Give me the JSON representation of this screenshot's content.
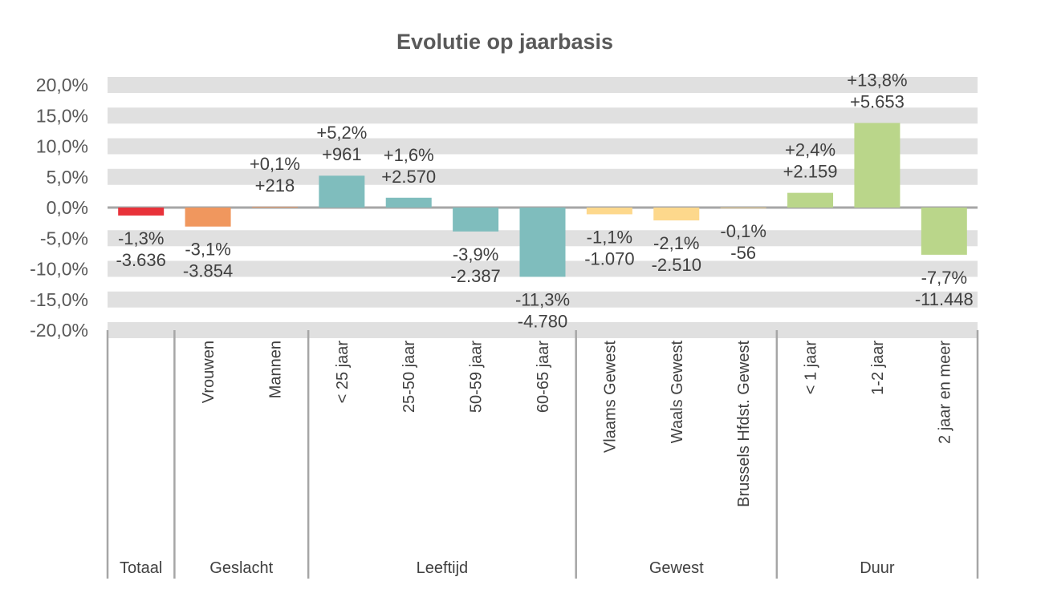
{
  "chart_data": {
    "type": "bar",
    "title": "Evolutie op jaarbasis",
    "xlabel": "",
    "ylabel": "",
    "ylim": [
      -20,
      20
    ],
    "yticks": [
      20,
      15,
      10,
      5,
      0,
      -5,
      -10,
      -15,
      -20
    ],
    "ytick_labels": [
      "20,0%",
      "15,0%",
      "10,0%",
      "5,0%",
      "0,0%",
      "-5,0%",
      "-10,0%",
      "-15,0%",
      "-20,0%"
    ],
    "grid": "alternating bands",
    "legend": "none",
    "categories": [
      "",
      "Vrouwen",
      "Mannen",
      "< 25 jaar",
      "25-50 jaar",
      "50-59 jaar",
      "60-65 jaar",
      "Vlaams Gewest",
      "Waals Gewest",
      "Brussels Hfdst. Gewest",
      "< 1 jaar",
      "1-2 jaar",
      "2 jaar en meer"
    ],
    "values": [
      -1.3,
      -3.1,
      0.1,
      5.2,
      1.6,
      -3.9,
      -11.3,
      -1.1,
      -2.1,
      -0.1,
      2.4,
      13.8,
      -7.7
    ],
    "pct_labels": [
      "-1,3%",
      "-3,1%",
      "+0,1%",
      "+5,2%",
      "+1,6%",
      "-3,9%",
      "-11,3%",
      "-1,1%",
      "-2,1%",
      "-0,1%",
      "+2,4%",
      "+13,8%",
      "-7,7%"
    ],
    "abs_labels": [
      "-3.636",
      "-3.854",
      "+218",
      "+961",
      "+2.570",
      "-2.387",
      "-4.780",
      "-1.070",
      "-2.510",
      "-56",
      "+2.159",
      "+5.653",
      "-11.448"
    ],
    "groups": [
      {
        "label": "Totaal",
        "span": 1,
        "color": "#E8323A"
      },
      {
        "label": "Geslacht",
        "span": 2,
        "color": "#F0975E"
      },
      {
        "label": "Leeftijd",
        "span": 4,
        "color": "#7FBDBD"
      },
      {
        "label": "Gewest",
        "span": 3,
        "color": "#FDD88C"
      },
      {
        "label": "Duur",
        "span": 3,
        "color": "#BAD68A"
      }
    ]
  }
}
